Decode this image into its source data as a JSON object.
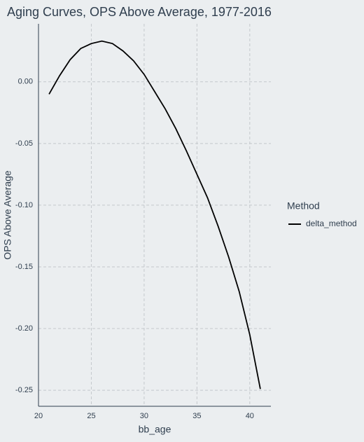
{
  "chart_data": {
    "type": "line",
    "title": "Aging Curves, OPS Above Average, 1977-2016",
    "x_label": "bb_age",
    "y_label": "OPS Above Average",
    "legend_title": "Method",
    "legend_position": "right",
    "x": [
      21,
      22,
      23,
      24,
      25,
      26,
      27,
      28,
      29,
      30,
      31,
      32,
      33,
      34,
      35,
      36,
      37,
      38,
      39,
      40,
      41
    ],
    "series": [
      {
        "name": "delta_method",
        "color": "#000000",
        "values": [
          -0.01,
          0.005,
          0.018,
          0.027,
          0.031,
          0.033,
          0.031,
          0.025,
          0.017,
          0.006,
          -0.008,
          -0.022,
          -0.038,
          -0.056,
          -0.075,
          -0.094,
          -0.117,
          -0.142,
          -0.17,
          -0.205,
          -0.249
        ]
      }
    ],
    "xlim": [
      20,
      42
    ],
    "xticks": [
      20,
      25,
      30,
      35,
      40
    ],
    "ylim": [
      -0.263,
      0.047
    ],
    "yticks": [
      {
        "value": 0,
        "label": "0.00"
      },
      -0.05,
      {
        "value": -0.1,
        "label": "-0.10"
      },
      -0.15,
      {
        "value": -0.2,
        "label": "-0.20"
      },
      -0.25
    ],
    "grid": true
  }
}
